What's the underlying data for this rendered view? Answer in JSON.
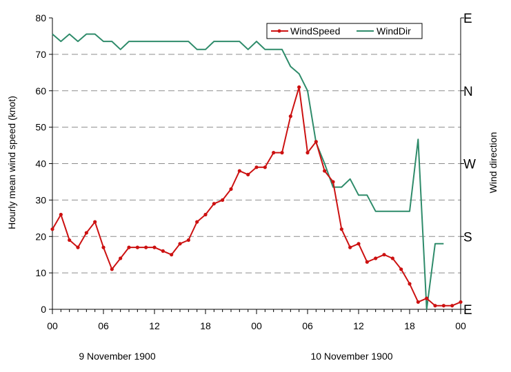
{
  "chart_data": {
    "type": "line",
    "title": "",
    "ylabel": "Hourly mean wind speed (knot)",
    "y2label": "Wind direction",
    "ylim": [
      0,
      80
    ],
    "yticks": [
      "0",
      "10",
      "20",
      "30",
      "40",
      "50",
      "60",
      "70",
      "80"
    ],
    "y2ticks": [
      "E",
      "N",
      "W",
      "S",
      "E"
    ],
    "y2_note": "Wind direction axis: E=0/360deg(bottom), S=90deg, W=180deg, N=270deg, E=360deg(top)",
    "xlim_hours": [
      0,
      48
    ],
    "xticks": [
      "00",
      "06",
      "12",
      "18",
      "00",
      "06",
      "12",
      "18",
      "00"
    ],
    "date_labels": [
      "9 November 1900",
      "10 November 1900"
    ],
    "grid": "horizontal dashed",
    "legend_position": "top-right",
    "series": [
      {
        "name": "WindSpeed",
        "color": "#cc1111",
        "axis": "left",
        "hours": [
          0,
          1,
          2,
          3,
          4,
          5,
          6,
          7,
          8,
          9,
          10,
          11,
          12,
          13,
          14,
          15,
          16,
          17,
          18,
          19,
          20,
          21,
          22,
          23,
          24,
          25,
          26,
          27,
          28,
          29,
          30,
          31,
          32,
          33,
          34,
          35,
          36,
          37,
          38,
          39,
          40,
          41,
          42,
          43,
          44,
          45,
          46,
          47,
          48
        ],
        "values": [
          22,
          26,
          19,
          17,
          21,
          24,
          17,
          11,
          14,
          17,
          17,
          17,
          17,
          16,
          15,
          18,
          19,
          24,
          26,
          29,
          30,
          33,
          38,
          37,
          39,
          39,
          43,
          43,
          53,
          61,
          43,
          46,
          38,
          35,
          22,
          17,
          18,
          13,
          14,
          15,
          14,
          11,
          7,
          2,
          3,
          1,
          1,
          1,
          2
        ]
      },
      {
        "name": "WindDir",
        "color": "#2e8b6a",
        "axis": "right",
        "hours": [
          0,
          1,
          2,
          3,
          4,
          5,
          6,
          7,
          8,
          9,
          10,
          11,
          12,
          13,
          14,
          15,
          16,
          17,
          18,
          19,
          20,
          21,
          22,
          23,
          24,
          25,
          26,
          27,
          28,
          29,
          30,
          31,
          32,
          33,
          34,
          35,
          36,
          37,
          38,
          39,
          40,
          41,
          42,
          43,
          44,
          45,
          46
        ],
        "values_deg": [
          340,
          331,
          340,
          331,
          340,
          340,
          331,
          331,
          321,
          331,
          331,
          331,
          331,
          331,
          331,
          331,
          331,
          321,
          321,
          331,
          331,
          331,
          331,
          321,
          331,
          321,
          321,
          321,
          300,
          291,
          270,
          206,
          180,
          151,
          151,
          161,
          141,
          141,
          121,
          121,
          121,
          121,
          121,
          210,
          0,
          81,
          81
        ]
      }
    ]
  }
}
